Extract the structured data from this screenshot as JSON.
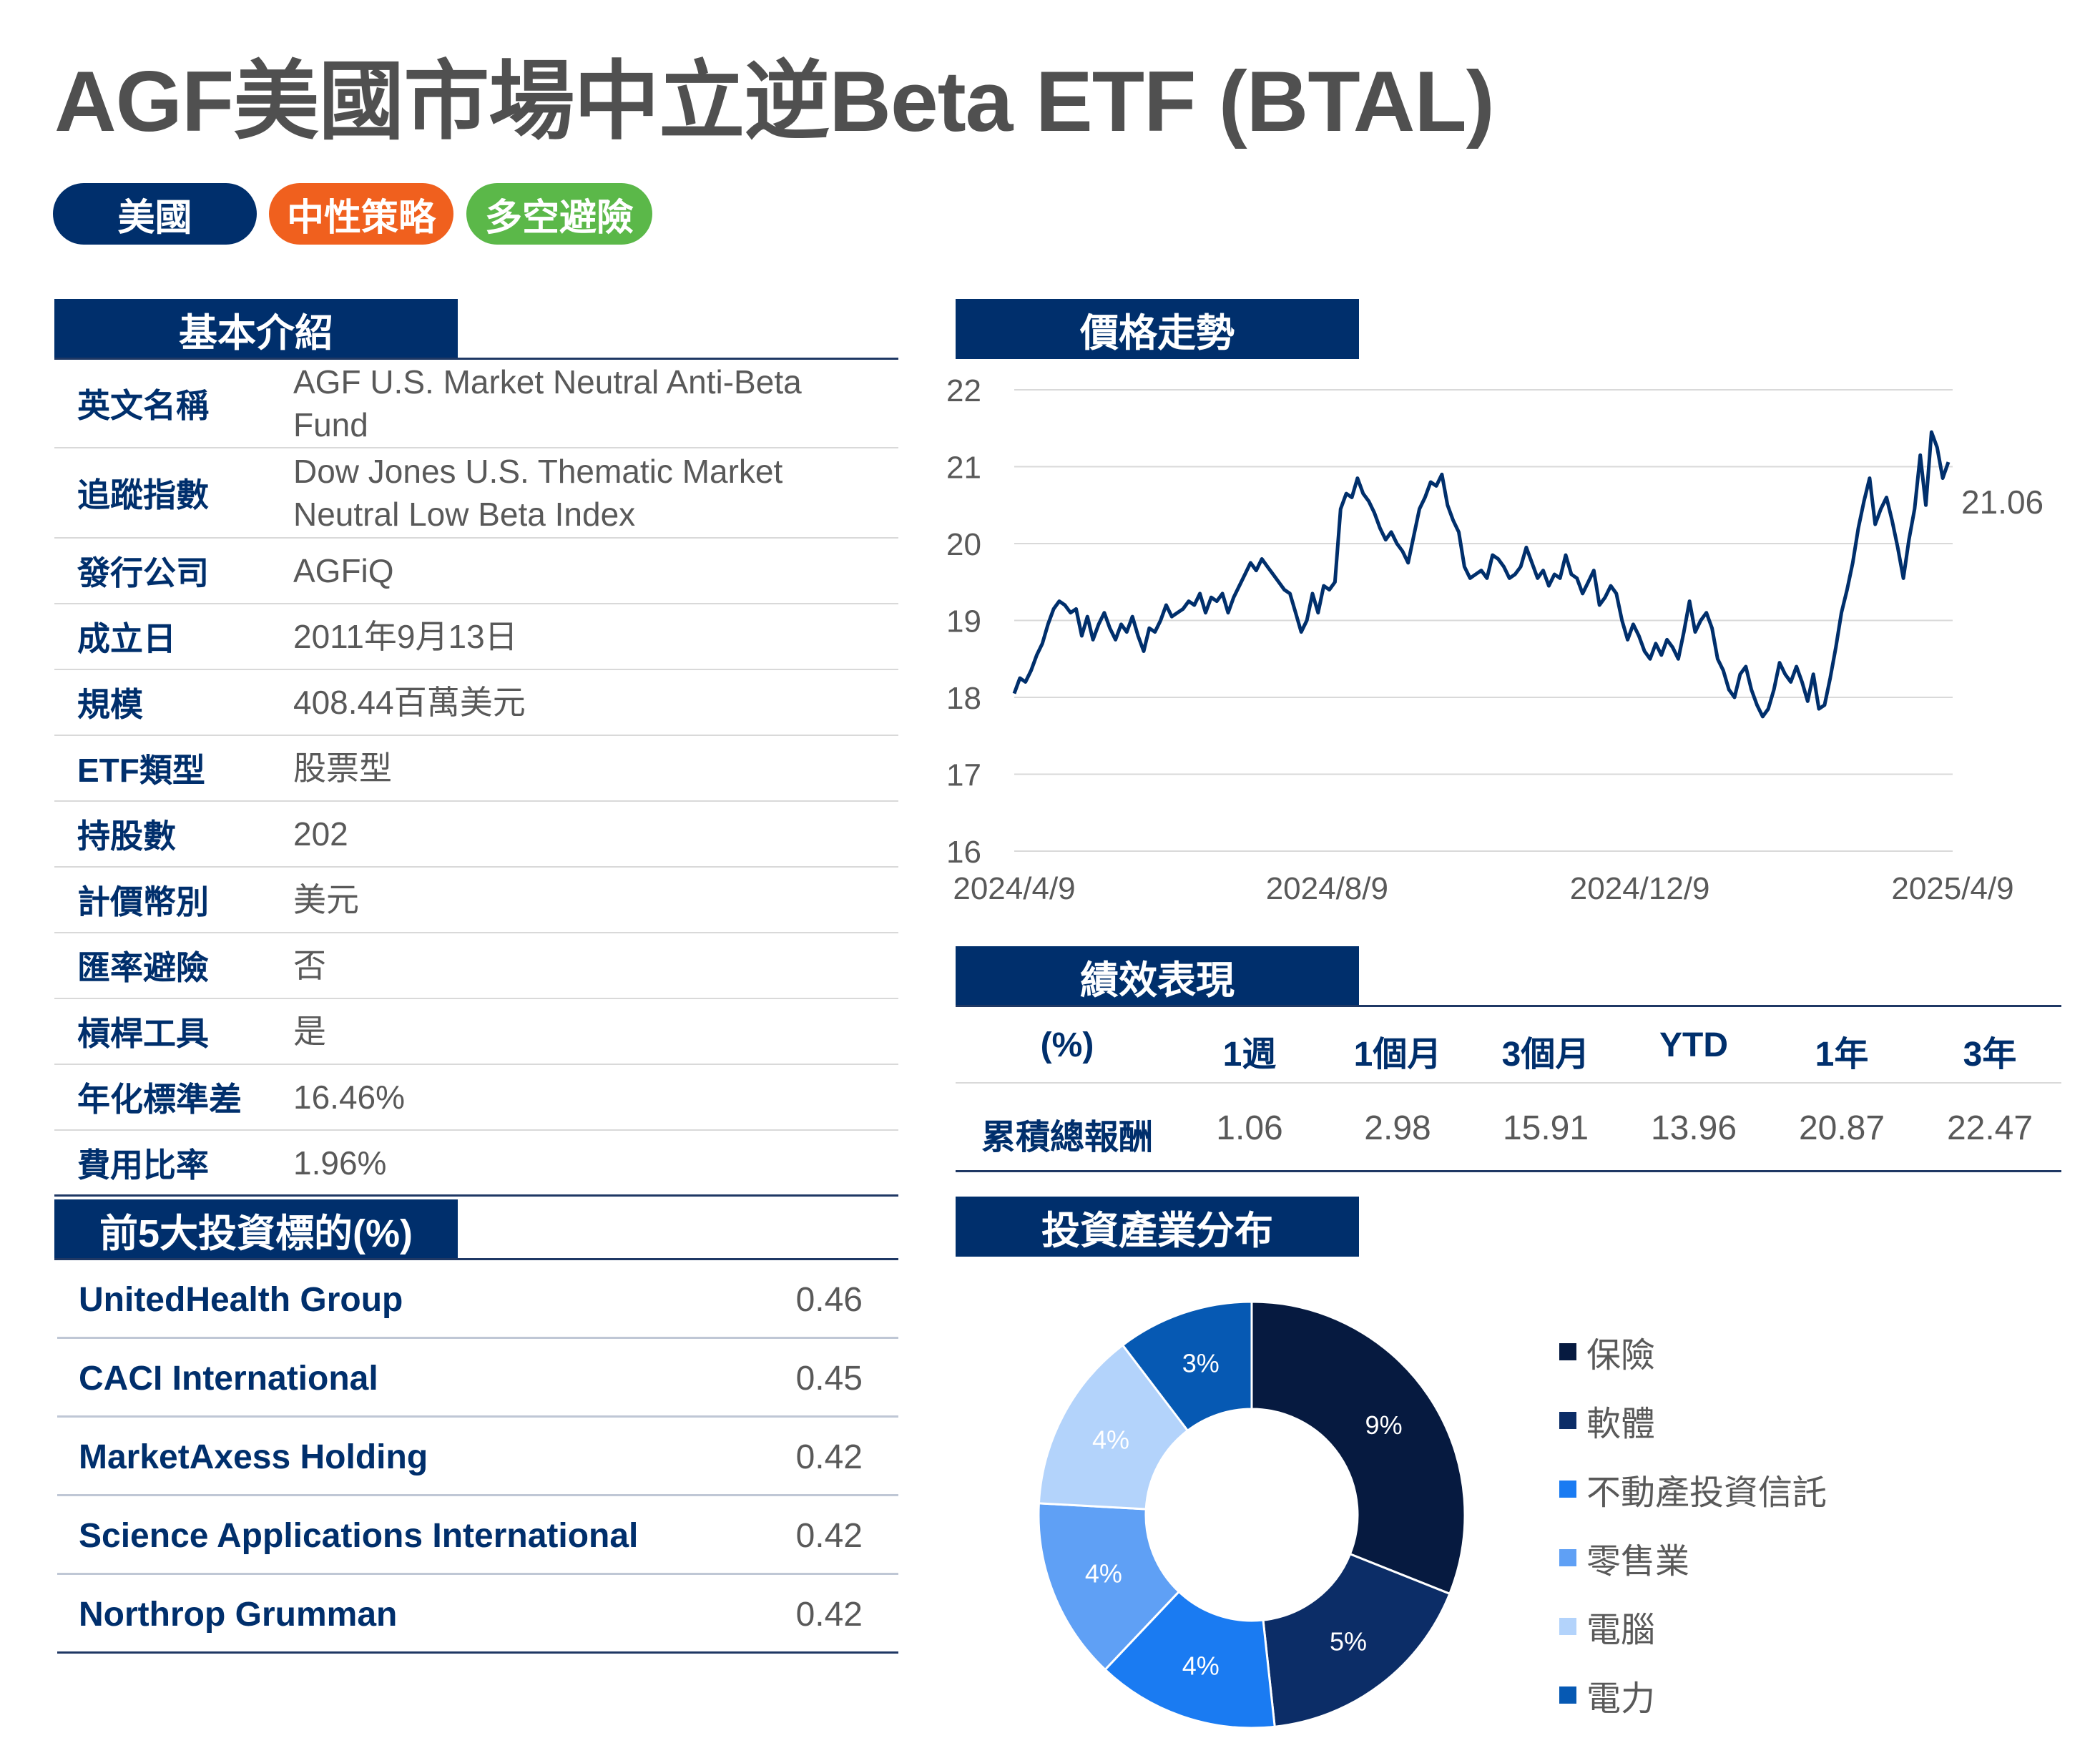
{
  "title": "AGF美國市場中立逆Beta ETF (BTAL)",
  "tags": [
    {
      "label": "美國",
      "color": "#002F6C"
    },
    {
      "label": "中性策略",
      "color": "#F0601E"
    },
    {
      "label": "多空避險",
      "color": "#5BB849"
    }
  ],
  "basic_info": {
    "header": "基本介紹",
    "rows": [
      {
        "label": "英文名稱",
        "value": "AGF U.S. Market Neutral Anti-Beta\nFund"
      },
      {
        "label": "追蹤指數",
        "value": "Dow Jones U.S. Thematic Market\nNeutral Low Beta Index"
      },
      {
        "label": "發行公司",
        "value": "AGFiQ"
      },
      {
        "label": "成立日",
        "value": "2011年9月13日"
      },
      {
        "label": "規模",
        "value": "408.44百萬美元"
      },
      {
        "label": "ETF類型",
        "value": "股票型"
      },
      {
        "label": "持股數",
        "value": "202"
      },
      {
        "label": "計價幣別",
        "value": "美元"
      },
      {
        "label": "匯率避險",
        "value": "否"
      },
      {
        "label": "槓桿工具",
        "value": "是"
      },
      {
        "label": "年化標準差",
        "value": "16.46%"
      },
      {
        "label": "費用比率",
        "value": "1.96%"
      }
    ]
  },
  "top_holdings": {
    "header": "前5大投資標的(%)",
    "rows": [
      {
        "name": "UnitedHealth Group",
        "value": "0.46"
      },
      {
        "name": "CACI International",
        "value": "0.45"
      },
      {
        "name": "MarketAxess Holding",
        "value": "0.42"
      },
      {
        "name": "Science Applications International",
        "value": "0.42"
      },
      {
        "name": "Northrop Grumman",
        "value": "0.42"
      }
    ]
  },
  "price_trend": {
    "header": "價格走勢",
    "last_label": "21.06"
  },
  "performance": {
    "header": "績效表現",
    "columns": [
      "(%)",
      "1週",
      "1個月",
      "3個月",
      "YTD",
      "1年",
      "3年"
    ],
    "row_label": "累積總報酬",
    "values": [
      "1.06",
      "2.98",
      "15.91",
      "13.96",
      "20.87",
      "22.47"
    ]
  },
  "industry": {
    "header": "投資產業分布"
  },
  "chart_data": [
    {
      "type": "line",
      "ylim": [
        16,
        22
      ],
      "yticks": [
        "16",
        "17",
        "18",
        "19",
        "20",
        "21",
        "22"
      ],
      "xticks": [
        "2024/4/9",
        "2024/8/9",
        "2024/12/9",
        "2025/4/9"
      ],
      "grid": true,
      "line_color": "#002F6C",
      "y": [
        18.05,
        18.25,
        18.2,
        18.35,
        18.55,
        18.7,
        18.95,
        19.15,
        19.25,
        19.2,
        19.1,
        19.15,
        18.8,
        19.05,
        18.75,
        18.95,
        19.1,
        18.9,
        18.75,
        18.95,
        18.85,
        19.05,
        18.8,
        18.6,
        18.9,
        18.85,
        19.0,
        19.2,
        19.05,
        19.1,
        19.15,
        19.25,
        19.2,
        19.35,
        19.1,
        19.3,
        19.25,
        19.35,
        19.1,
        19.3,
        19.45,
        19.6,
        19.75,
        19.65,
        19.8,
        19.7,
        19.6,
        19.5,
        19.4,
        19.35,
        19.1,
        18.85,
        19.0,
        19.35,
        19.1,
        19.45,
        19.4,
        19.5,
        20.45,
        20.65,
        20.6,
        20.85,
        20.65,
        20.55,
        20.4,
        20.2,
        20.05,
        20.15,
        20.0,
        19.9,
        19.75,
        20.1,
        20.45,
        20.6,
        20.8,
        20.75,
        20.9,
        20.5,
        20.3,
        20.15,
        19.7,
        19.55,
        19.6,
        19.65,
        19.55,
        19.85,
        19.8,
        19.7,
        19.55,
        19.6,
        19.7,
        19.95,
        19.75,
        19.55,
        19.65,
        19.45,
        19.6,
        19.55,
        19.85,
        19.6,
        19.55,
        19.35,
        19.5,
        19.65,
        19.2,
        19.3,
        19.45,
        19.35,
        19.0,
        18.75,
        18.95,
        18.8,
        18.6,
        18.5,
        18.7,
        18.55,
        18.75,
        18.65,
        18.5,
        18.85,
        19.25,
        18.85,
        19.0,
        19.1,
        18.9,
        18.5,
        18.35,
        18.1,
        18.0,
        18.3,
        18.4,
        18.1,
        17.9,
        17.75,
        17.85,
        18.1,
        18.45,
        18.3,
        18.2,
        18.4,
        18.2,
        17.95,
        18.3,
        17.85,
        17.9,
        18.25,
        18.65,
        19.1,
        19.4,
        19.75,
        20.2,
        20.55,
        20.85,
        20.25,
        20.45,
        20.6,
        20.3,
        19.95,
        19.55,
        20.05,
        20.45,
        21.15,
        20.5,
        21.45,
        21.25,
        20.85,
        21.06
      ]
    },
    {
      "type": "pie",
      "donut": true,
      "slices": [
        {
          "name": "保險",
          "value": 9,
          "label": "9%",
          "color": "#061A40"
        },
        {
          "name": "軟體",
          "value": 5,
          "label": "5%",
          "color": "#0C2D67"
        },
        {
          "name": "不動產投資信託",
          "value": 4,
          "label": "4%",
          "color": "#1A7BF2"
        },
        {
          "name": "零售業",
          "value": 4,
          "label": "4%",
          "color": "#5FA0F5"
        },
        {
          "name": "電腦",
          "value": 4,
          "label": "4%",
          "color": "#B3D3FB"
        },
        {
          "name": "電力",
          "value": 3,
          "label": "3%",
          "color": "#0659B3"
        }
      ],
      "legend": [
        "保險",
        "軟體",
        "不動產投資信託",
        "零售業",
        "電腦",
        "電力"
      ],
      "legend_position": "right"
    }
  ]
}
